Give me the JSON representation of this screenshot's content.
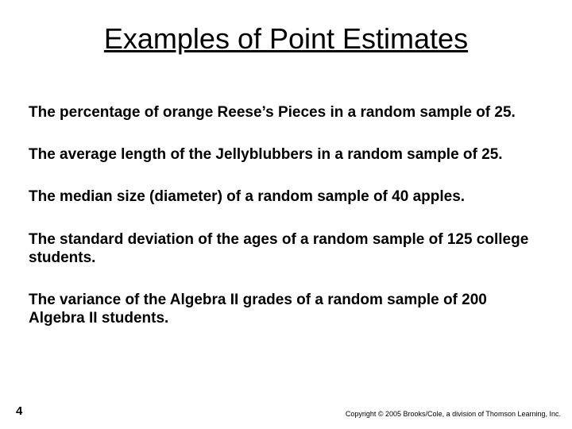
{
  "slide": {
    "title": "Examples of Point Estimates",
    "title_fontsize": 36,
    "title_underline": true,
    "body_fontsize": 19,
    "body_fontweight": "bold",
    "background_color": "#ffffff",
    "text_color": "#000000",
    "items": [
      "The percentage of orange Reese’s Pieces in a random sample of 25.",
      "The average length of the Jellyblubbers in a random sample of 25.",
      "The median size (diameter) of a random sample of 40 apples.",
      "The standard deviation of the ages of a random sample of 125 college students.",
      "The variance of the Algebra II grades of a random sample of 200 Algebra II students."
    ],
    "page_number": "4",
    "copyright": "Copyright © 2005 Brooks/Cole, a division of Thomson Learning, Inc."
  }
}
